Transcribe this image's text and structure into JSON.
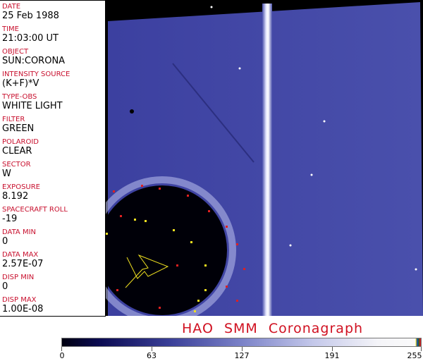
{
  "fields": [
    {
      "label": "DATE",
      "value": "25 Feb 1988"
    },
    {
      "label": "TIME",
      "value": "21:03:00 UT"
    },
    {
      "label": "OBJECT",
      "value": "SUN:CORONA"
    },
    {
      "label": "INTENSITY SOURCE",
      "value": "(K+F)*V"
    },
    {
      "label": "TYPE-OBS",
      "value": "WHITE LIGHT"
    },
    {
      "label": "FILTER",
      "value": "GREEN"
    },
    {
      "label": "POLAROID",
      "value": "CLEAR"
    },
    {
      "label": "SECTOR",
      "value": "W"
    },
    {
      "label": "EXPOSURE",
      "value": "8.192"
    },
    {
      "label": "SPACECRAFT ROLL",
      "value": "-19"
    },
    {
      "label": "DATA MIN",
      "value": "0"
    },
    {
      "label": "DATA MAX",
      "value": "2.57E-07"
    },
    {
      "label": "DISP MIN",
      "value": "0"
    },
    {
      "label": "DISP MAX",
      "value": "1.00E-08"
    }
  ],
  "title": "HAO  SMM Coronagraph",
  "colorbar": {
    "ticks": [
      "0",
      "63",
      "127",
      "191",
      "255"
    ],
    "colors": {
      "low": "#000010",
      "mid": "#3a3f98",
      "high": "#fafafa"
    }
  }
}
